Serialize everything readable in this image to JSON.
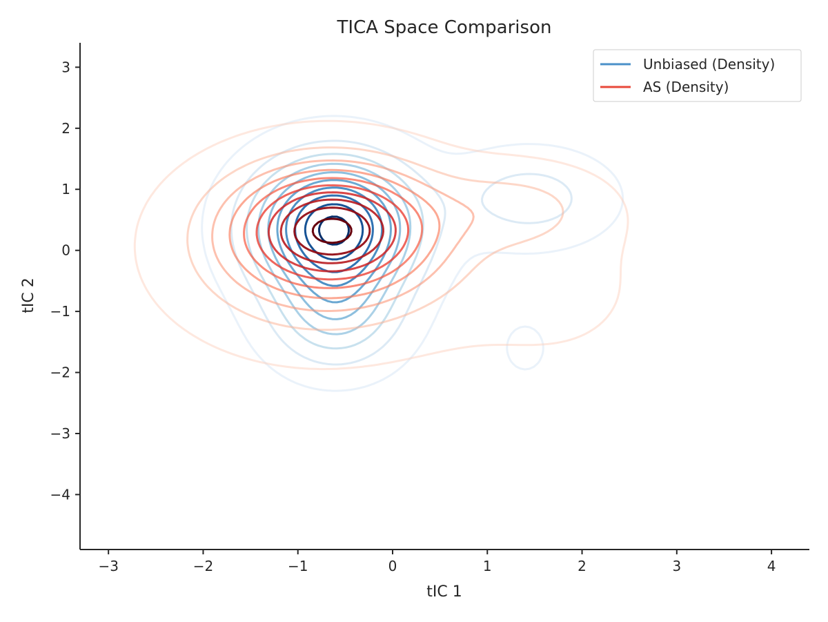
{
  "chart_data": {
    "type": "contour",
    "title": "TICA Space Comparison",
    "xlabel": "tIC 1",
    "ylabel": "tIC 2",
    "xlim": [
      -3.3,
      4.4
    ],
    "ylim": [
      -4.9,
      3.4
    ],
    "xticks": [
      -3,
      -2,
      -1,
      0,
      1,
      2,
      3,
      4
    ],
    "yticks": [
      -4,
      -3,
      -2,
      -1,
      0,
      1,
      2,
      3
    ],
    "grid": false,
    "legend_position": "top-right",
    "series": [
      {
        "name": "Unbiased (Density)",
        "legend_color": "#4a90c8",
        "colormap": "Blues",
        "levels": 10,
        "components": [
          {
            "cx": -0.62,
            "cy": 0.38,
            "sx": 0.55,
            "sy": 0.72,
            "w": 1.0
          },
          {
            "cx": -0.6,
            "cy": -1.05,
            "sx": 0.45,
            "sy": 0.6,
            "w": 0.35
          },
          {
            "cx": 1.45,
            "cy": 0.85,
            "sx": 0.55,
            "sy": 0.5,
            "w": 0.2
          },
          {
            "cx": 1.4,
            "cy": -1.6,
            "sx": 0.3,
            "sy": 0.55,
            "w": 0.05
          }
        ]
      },
      {
        "name": "AS (Density)",
        "legend_color": "#e8483a",
        "colormap": "Reds",
        "levels": 10,
        "components": [
          {
            "cx": -0.62,
            "cy": 0.38,
            "sx": 0.65,
            "sy": 0.62,
            "w": 1.0
          },
          {
            "cx": -0.75,
            "cy": 0.0,
            "sx": 0.95,
            "sy": 0.95,
            "w": 0.45
          },
          {
            "cx": 1.3,
            "cy": 0.7,
            "sx": 0.6,
            "sy": 0.45,
            "w": 0.22
          },
          {
            "cx": 1.7,
            "cy": -0.6,
            "sx": 0.8,
            "sy": 1.0,
            "w": 0.08
          }
        ]
      }
    ]
  }
}
